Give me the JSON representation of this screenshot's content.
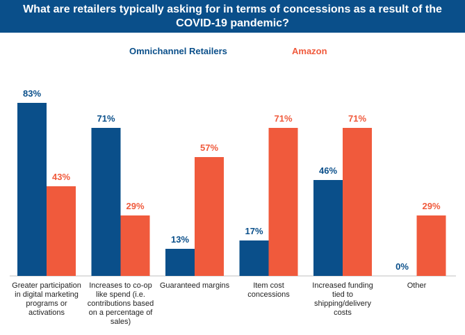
{
  "title": "What are retailers typically asking for in terms of concessions as a result of the COVID-19 pandemic?",
  "colors": {
    "title_bg": "#0a4f8a",
    "omnichannel": "#0a4f8a",
    "amazon": "#f05a3c"
  },
  "chart_data": {
    "type": "bar",
    "title": "What are retailers typically asking for in terms of concessions as a result of the COVID-19 pandemic?",
    "categories": [
      "Greater participation in digital marketing programs or activations",
      "Increases to co-op like spend (i.e. contributions based on a percentage of sales)",
      "Guaranteed margins",
      "Item cost concessions",
      "Increased funding tied to shipping/delivery costs",
      "Other"
    ],
    "series": [
      {
        "name": "Omnichannel Retailers",
        "values": [
          83,
          71,
          13,
          17,
          46,
          0
        ],
        "labels": [
          "83%",
          "71%",
          "13%",
          "17%",
          "46%",
          "0%"
        ],
        "color": "#0a4f8a"
      },
      {
        "name": "Amazon",
        "values": [
          43,
          29,
          57,
          71,
          71,
          29
        ],
        "labels": [
          "43%",
          "29%",
          "57%",
          "71%",
          "71%",
          "29%"
        ],
        "color": "#f05a3c"
      }
    ],
    "ylim": [
      0,
      100
    ],
    "grid": false,
    "legend": "top-center",
    "xlabel": "",
    "ylabel": ""
  }
}
